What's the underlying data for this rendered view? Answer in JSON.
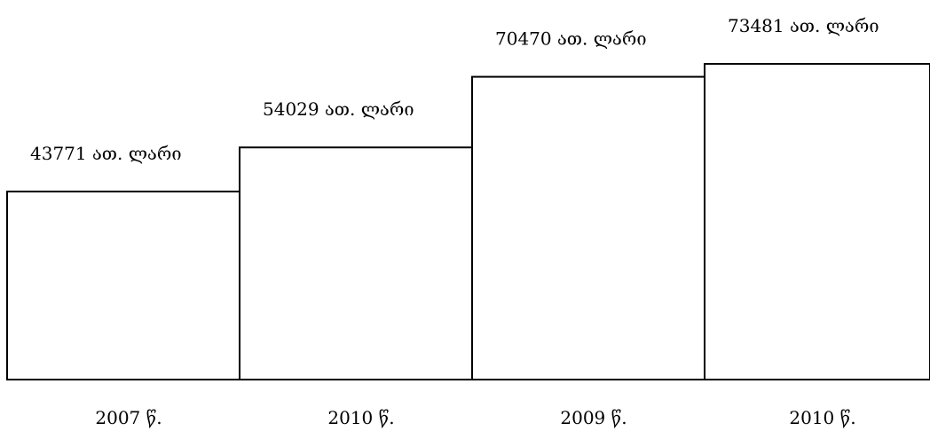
{
  "chart_data": {
    "type": "bar",
    "categories": [
      "2007 წ.",
      "2010 წ.",
      "2009 წ.",
      "2010 წ."
    ],
    "values": [
      43771,
      54029,
      70470,
      73481
    ],
    "data_labels": [
      "43771 ათ. ლარი",
      "54029 ათ. ლარი",
      "70470 ათ. ლარი",
      "73481 ათ. ლარი"
    ],
    "title": "",
    "xlabel": "",
    "ylabel": "",
    "ylim": [
      0,
      73481
    ],
    "grid": false,
    "legend": "none",
    "bar_fill": "#ffffff",
    "bar_stroke": "#000000"
  }
}
